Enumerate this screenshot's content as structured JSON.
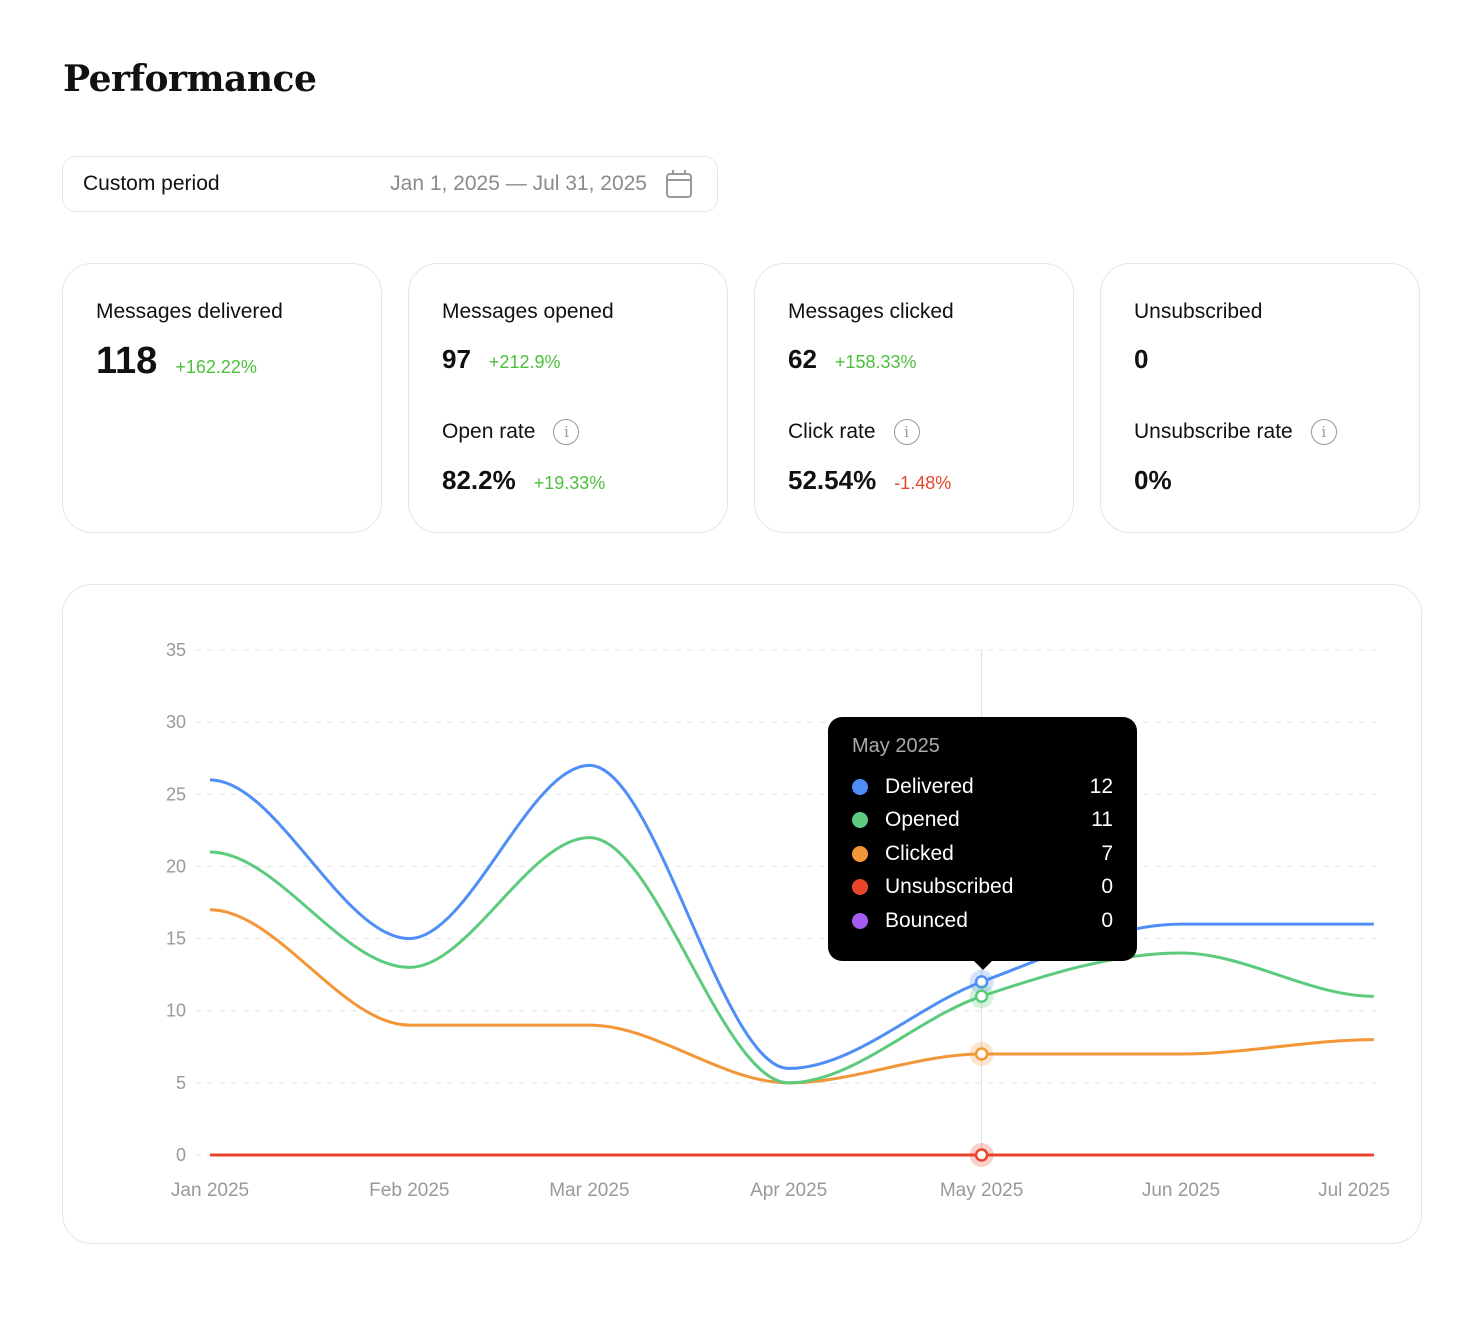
{
  "title": "Performance",
  "period": {
    "label": "Custom period",
    "range": "Jan 1, 2025 — Jul 31, 2025",
    "icon": "calendar-icon"
  },
  "cards": [
    {
      "title": "Messages delivered",
      "value": "118",
      "change": "+162.22%"
    },
    {
      "title": "Messages opened",
      "value": "97",
      "change": "+212.9%",
      "rate_label": "Open rate",
      "rate": "82.2%",
      "rate_change": "+19.33%"
    },
    {
      "title": "Messages clicked",
      "value": "62",
      "change": "+158.33%",
      "rate_label": "Click rate",
      "rate": "52.54%",
      "rate_change": "-1.48%"
    },
    {
      "title": "Unsubscribed",
      "value": "0",
      "rate_label": "Unsubscribe rate",
      "rate": "0%"
    }
  ],
  "chart_data": {
    "type": "line",
    "x": [
      "2025-01-01",
      "2025-02-01",
      "2025-03-01",
      "2025-04-01",
      "2025-05-01",
      "2025-06-01",
      "2025-07-01"
    ],
    "xticks": [
      "Jan 2025",
      "Feb 2025",
      "Mar 2025",
      "Apr 2025",
      "May 2025",
      "Jun 2025",
      "Jul 2025"
    ],
    "yticks": [
      "0",
      "5",
      "10",
      "15",
      "20",
      "25",
      "30",
      "35"
    ],
    "ylim": [
      0,
      35
    ],
    "grid": true,
    "series": [
      {
        "name": "Delivered",
        "color": "#4f8ef7",
        "values": [
          26,
          15,
          27,
          6,
          12,
          16,
          16
        ]
      },
      {
        "name": "Opened",
        "color": "#5ccb7e",
        "values": [
          21,
          13,
          22,
          5,
          11,
          14,
          11
        ]
      },
      {
        "name": "Clicked",
        "color": "#f39638",
        "values": [
          17,
          9,
          9,
          5,
          7,
          7,
          8
        ]
      },
      {
        "name": "Unsubscribed",
        "color": "#e8452c",
        "values": [
          0,
          0,
          0,
          0,
          0,
          0,
          0
        ]
      },
      {
        "name": "Bounced",
        "color": "#a55cf0",
        "values": [
          0,
          0,
          0,
          0,
          0,
          0,
          0
        ]
      }
    ],
    "tooltip": {
      "title": "May 2025",
      "index": 4,
      "values": [
        "12",
        "11",
        "7",
        "0",
        "0"
      ]
    }
  }
}
